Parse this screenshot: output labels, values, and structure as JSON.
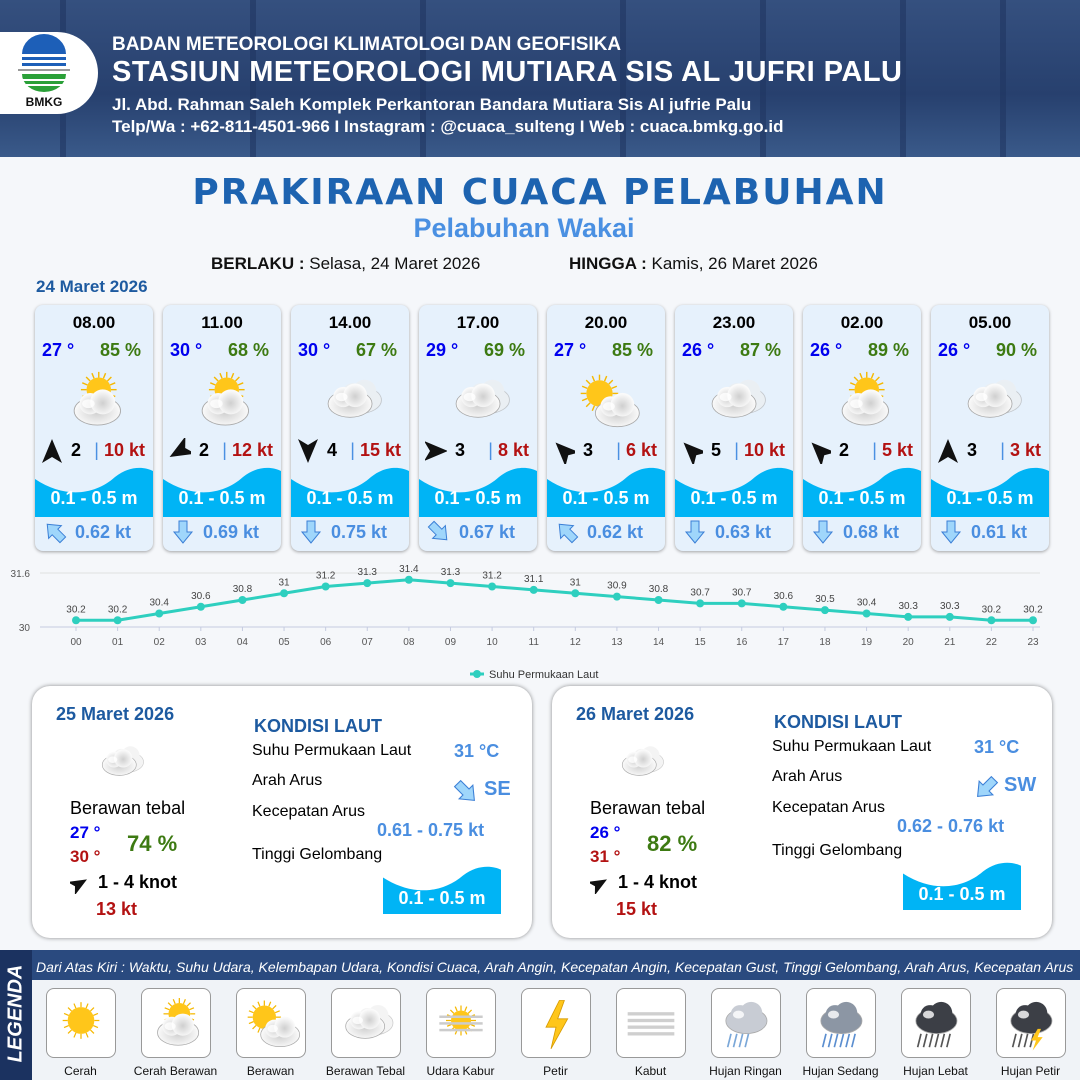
{
  "header": {
    "logo_text": "BMKG",
    "agency": "BADAN METEOROLOGI KLIMATOLOGI DAN GEOFISIKA",
    "station": "STASIUN METEOROLOGI MUTIARA SIS AL JUFRI PALU",
    "address": "Jl. Abd. Rahman Saleh Komplek Perkantoran Bandara Mutiara Sis Al jufrie Palu",
    "contact": "Telp/Wa : +62-811-4501-966  I  Instagram : @cuaca_sulteng  I  Web : cuaca.bmkg.go.id"
  },
  "title": "PRAKIRAAN CUACA PELABUHAN",
  "subtitle": "Pelabuhan Wakai",
  "validity": {
    "from_label": "BERLAKU :",
    "from": "Selasa, 24 Maret 2026",
    "to_label": "HINGGA :",
    "to": "Kamis, 26 Maret 2026"
  },
  "day1_date": "24 Maret 2026",
  "colors": {
    "temp": "#0000ee",
    "humidity": "#3d7a12",
    "gust": "#b31212",
    "wave": "#00b4f5",
    "current": "#4a8ee0",
    "title": "#1d63b0",
    "chart_line": "#2ecfbf"
  },
  "forecasts": [
    {
      "time": "08.00",
      "temp": "27 °",
      "rh": "85 %",
      "icon": "cerah-berawan",
      "wind_dir_deg": 0,
      "wind": "2",
      "gust": "10 kt",
      "wave": "0.1 - 0.5 m",
      "current_dir_deg": 315,
      "current": "0.62 kt"
    },
    {
      "time": "11.00",
      "temp": "30 °",
      "rh": "68 %",
      "icon": "cerah-berawan",
      "wind_dir_deg": 240,
      "wind": "2",
      "gust": "12 kt",
      "wave": "0.1 - 0.5 m",
      "current_dir_deg": 180,
      "current": "0.69 kt"
    },
    {
      "time": "14.00",
      "temp": "30 °",
      "rh": "67 %",
      "icon": "berawan-tebal",
      "wind_dir_deg": 180,
      "wind": "4",
      "gust": "15 kt",
      "wave": "0.1 - 0.5 m",
      "current_dir_deg": 180,
      "current": "0.75 kt"
    },
    {
      "time": "17.00",
      "temp": "29 °",
      "rh": "69 %",
      "icon": "berawan-tebal",
      "wind_dir_deg": 90,
      "wind": "3",
      "gust": "8 kt",
      "wave": "0.1 - 0.5 m",
      "current_dir_deg": 135,
      "current": "0.67 kt"
    },
    {
      "time": "20.00",
      "temp": "27 °",
      "rh": "85 %",
      "icon": "berawan",
      "wind_dir_deg": 315,
      "wind": "3",
      "gust": "6 kt",
      "wave": "0.1 - 0.5 m",
      "current_dir_deg": 315,
      "current": "0.62 kt"
    },
    {
      "time": "23.00",
      "temp": "26 °",
      "rh": "87 %",
      "icon": "berawan-tebal",
      "wind_dir_deg": 315,
      "wind": "5",
      "gust": "10 kt",
      "wave": "0.1 - 0.5 m",
      "current_dir_deg": 180,
      "current": "0.63 kt"
    },
    {
      "time": "02.00",
      "temp": "26 °",
      "rh": "89 %",
      "icon": "cerah-berawan",
      "wind_dir_deg": 315,
      "wind": "2",
      "gust": "5 kt",
      "wave": "0.1 - 0.5 m",
      "current_dir_deg": 180,
      "current": "0.68 kt"
    },
    {
      "time": "05.00",
      "temp": "26 °",
      "rh": "90 %",
      "icon": "berawan-tebal",
      "wind_dir_deg": 0,
      "wind": "3",
      "gust": "3 kt",
      "wave": "0.1 - 0.5 m",
      "current_dir_deg": 180,
      "current": "0.61 kt"
    }
  ],
  "chart_data": {
    "type": "line",
    "x": [
      "00",
      "01",
      "02",
      "03",
      "04",
      "05",
      "06",
      "07",
      "08",
      "09",
      "10",
      "11",
      "12",
      "13",
      "14",
      "15",
      "16",
      "17",
      "18",
      "19",
      "20",
      "21",
      "22",
      "23"
    ],
    "series": [
      {
        "name": "Suhu Permukaan Laut",
        "values": [
          30.2,
          30.2,
          30.4,
          30.6,
          30.8,
          31.0,
          31.2,
          31.3,
          31.4,
          31.3,
          31.2,
          31.1,
          31.0,
          30.9,
          30.8,
          30.7,
          30.7,
          30.6,
          30.5,
          30.4,
          30.3,
          30.3,
          30.2,
          30.2
        ]
      }
    ],
    "yticks": [
      "30",
      "31.6"
    ],
    "ylim": [
      30,
      31.6
    ],
    "legend": "bottom",
    "grid": true
  },
  "daily": [
    {
      "date": "25 Maret 2026",
      "icon": "berawan-tebal",
      "condition": "Berawan tebal",
      "tmin": "27 °",
      "tmax": "30 °",
      "rh": "74 %",
      "wind_dir_deg": 60,
      "wind": "1  - 4 knot",
      "gust": "13 kt",
      "sea_title": "KONDISI LAUT",
      "sst_label": "Suhu Permukaan Laut",
      "sst": "31 °C",
      "cur_dir_label": "Arah Arus",
      "cur_dir": "SE",
      "cur_dir_deg": 135,
      "cur_speed_label": "Kecepatan Arus",
      "cur_speed": "0.61  - 0.75 kt",
      "wave_label": "Tinggi Gelombang",
      "wave": "0.1 - 0.5 m"
    },
    {
      "date": "26 Maret 2026",
      "icon": "berawan-tebal",
      "condition": "Berawan tebal",
      "tmin": "26 °",
      "tmax": "31 °",
      "rh": "82 %",
      "wind_dir_deg": 60,
      "wind": "1  - 4 knot",
      "gust": "15 kt",
      "sea_title": "KONDISI LAUT",
      "sst_label": "Suhu Permukaan Laut",
      "sst": "31 °C",
      "cur_dir_label": "Arah Arus",
      "cur_dir": "SW",
      "cur_dir_deg": 225,
      "cur_speed_label": "Kecepatan Arus",
      "cur_speed": "0.62  - 0.76 kt",
      "wave_label": "Tinggi Gelombang",
      "wave": "0.1 - 0.5 m"
    }
  ],
  "legend": {
    "tag": "LEGENDA",
    "note": "Dari Atas Kiri : Waktu, Suhu Udara, Kelembapan Udara, Kondisi Cuaca, Arah Angin, Kecepatan Angin, Kecepatan Gust, Tinggi Gelombang, Arah Arus, Kecepatan Arus",
    "items": [
      {
        "label": "Cerah",
        "icon": "cerah"
      },
      {
        "label": "Cerah Berawan",
        "icon": "cerah-berawan"
      },
      {
        "label": "Berawan",
        "icon": "berawan"
      },
      {
        "label": "Berawan Tebal",
        "icon": "berawan-tebal"
      },
      {
        "label": "Udara Kabur",
        "icon": "udara-kabur"
      },
      {
        "label": "Petir",
        "icon": "petir"
      },
      {
        "label": "Kabut",
        "icon": "kabut"
      },
      {
        "label": "Hujan Ringan",
        "icon": "hujan-ringan"
      },
      {
        "label": "Hujan Sedang",
        "icon": "hujan-sedang"
      },
      {
        "label": "Hujan Lebat",
        "icon": "hujan-lebat"
      },
      {
        "label": "Hujan Petir",
        "icon": "hujan-petir"
      }
    ]
  }
}
